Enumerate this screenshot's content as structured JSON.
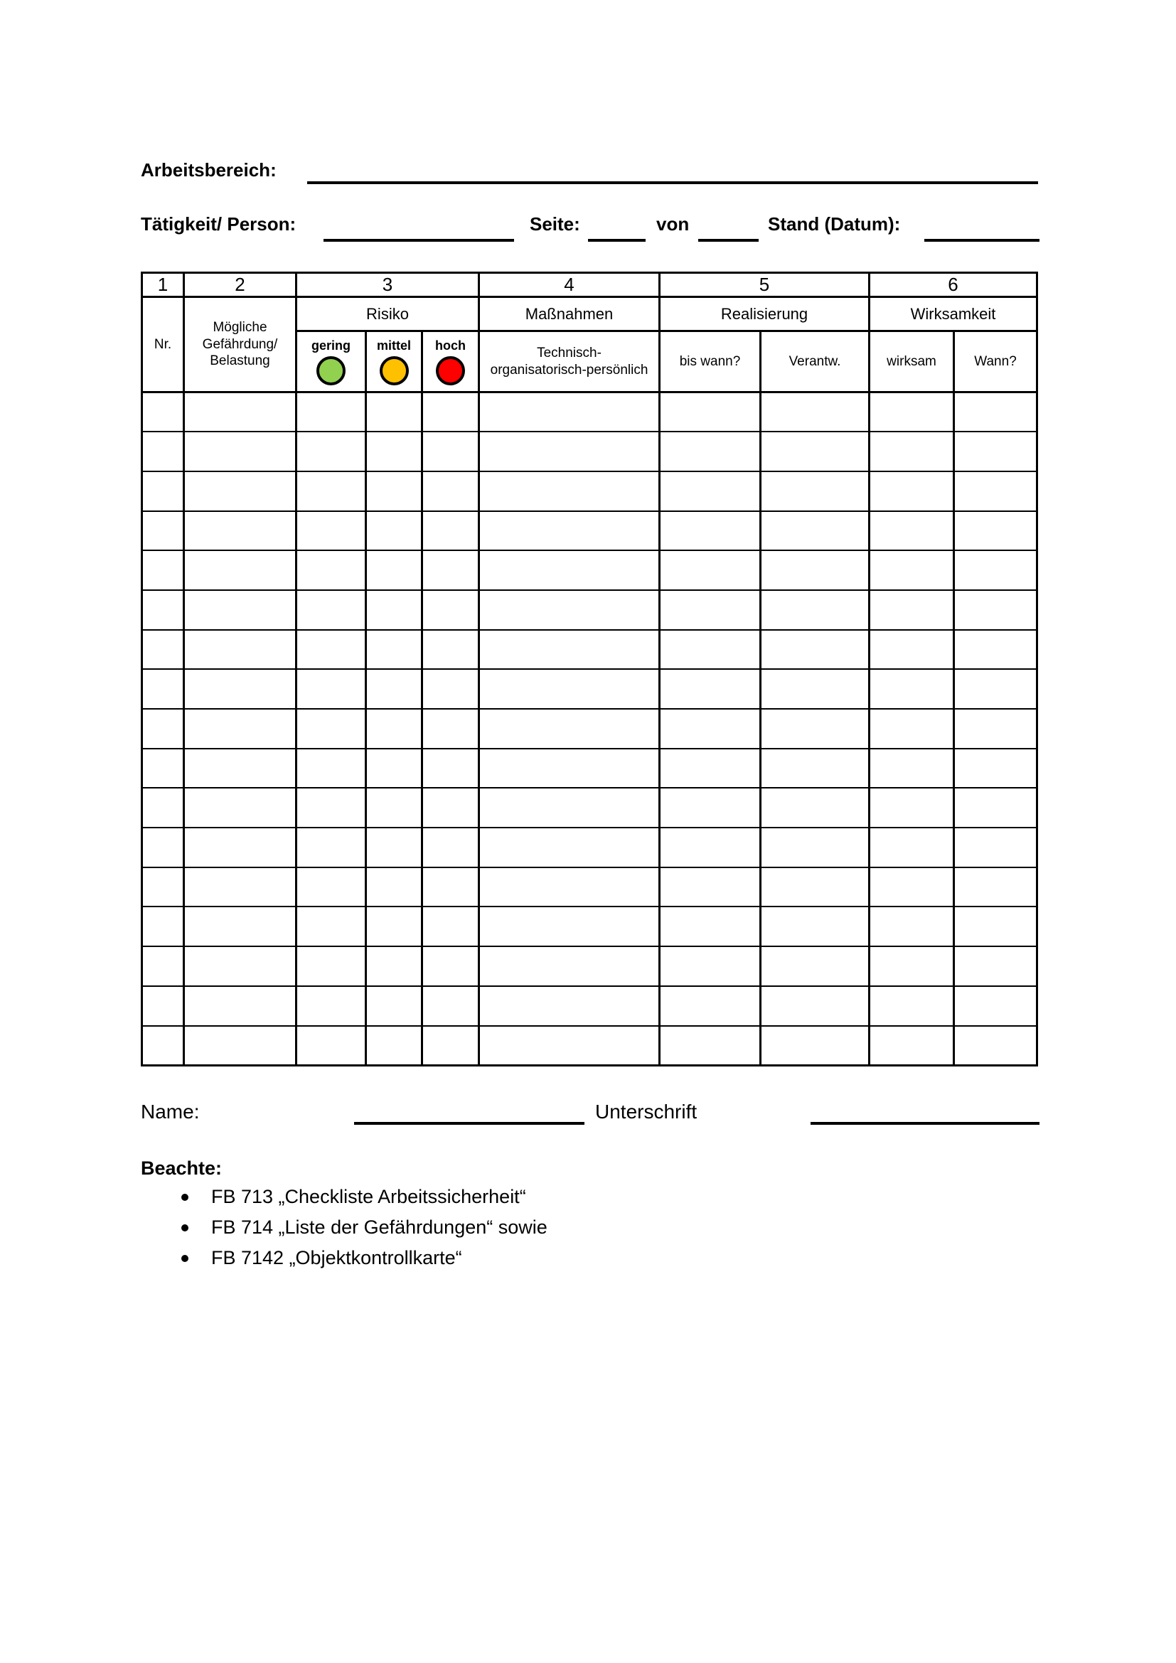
{
  "fields": {
    "arbeitsbereich": "Arbeitsbereich:",
    "taetigkeit": "Tätigkeit/ Person:",
    "seite": "Seite:",
    "von": "von",
    "stand": "Stand (Datum):"
  },
  "table": {
    "column_numbers": [
      "1",
      "2",
      "3",
      "4",
      "5",
      "6"
    ],
    "nr": "Nr.",
    "gefaehrdung": "Mögliche\nGefährdung/\nBelastung",
    "risiko": "Risiko",
    "massnahmen": "Maßnahmen",
    "realisierung": "Realisierung",
    "wirksamkeit": "Wirksamkeit",
    "risk_levels": [
      {
        "label": "gering",
        "color": "#92d050"
      },
      {
        "label": "mittel",
        "color": "#ffc000"
      },
      {
        "label": "hoch",
        "color": "#ff0000"
      }
    ],
    "massnahmen_sub": "Technisch-\norganisatorisch-persönlich",
    "bis_wann": "bis wann?",
    "verantw": "Verantw.",
    "wirksam": "wirksam",
    "wann": "Wann?",
    "body_row_count": 17
  },
  "signature": {
    "name": "Name:",
    "unterschrift": "Unterschrift"
  },
  "notes": {
    "heading": "Beachte:",
    "items": [
      "FB 713 „Checkliste Arbeitssicherheit“",
      "FB 714 „Liste der Gefährdungen“ sowie",
      "FB 7142 „Objektkontrollkarte“"
    ]
  }
}
